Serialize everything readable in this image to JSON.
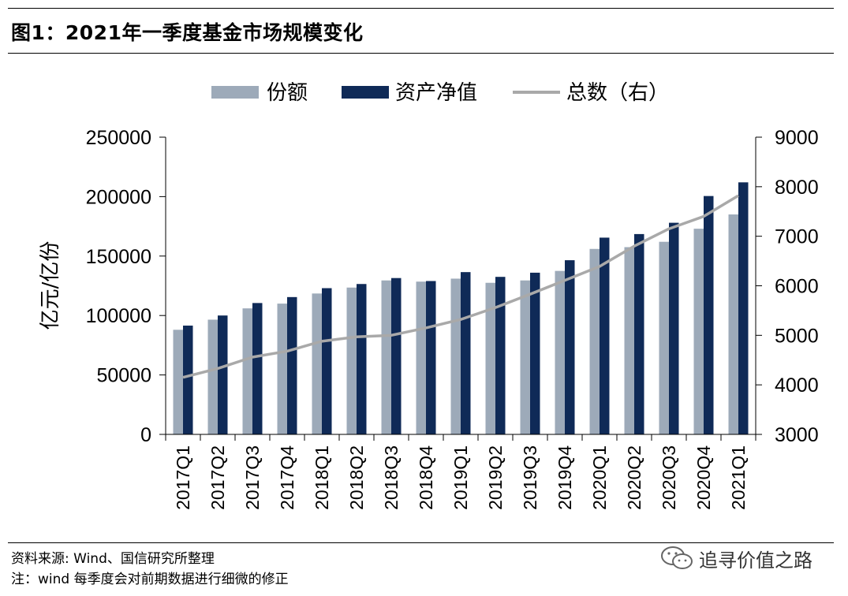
{
  "title": "图1：2021年一季度基金市场规模变化",
  "source_note": "资料来源: Wind、国信研究所整理",
  "footnote": "注：wind 每季度会对前期数据进行细微的修正",
  "brand": "追寻价值之路",
  "colors": {
    "shares": "#9daab9",
    "nav": "#0f2a57",
    "count": "#a9a9a9"
  },
  "chart_data": {
    "type": "bar",
    "categories": [
      "2017Q1",
      "2017Q2",
      "2017Q3",
      "2017Q4",
      "2018Q1",
      "2018Q2",
      "2018Q3",
      "2018Q4",
      "2019Q1",
      "2019Q2",
      "2019Q3",
      "2019Q4",
      "2020Q1",
      "2020Q2",
      "2020Q3",
      "2020Q4",
      "2021Q1"
    ],
    "series": [
      {
        "name": "份额",
        "kind": "bar",
        "axis": "left",
        "values": [
          88000,
          96500,
          106000,
          110000,
          118500,
          123500,
          129500,
          128500,
          131000,
          127500,
          129500,
          137500,
          156000,
          157500,
          162000,
          173000,
          185000
        ]
      },
      {
        "name": "资产净值",
        "kind": "bar",
        "axis": "left",
        "values": [
          91500,
          100000,
          110500,
          115500,
          123000,
          126500,
          131500,
          129000,
          136500,
          132500,
          136000,
          146500,
          165500,
          168500,
          178000,
          200500,
          212000
        ]
      },
      {
        "name": "总数（右）",
        "kind": "line",
        "axis": "right",
        "values": [
          4150,
          4330,
          4560,
          4680,
          4880,
          4970,
          5000,
          5150,
          5320,
          5560,
          5830,
          6110,
          6390,
          6800,
          7150,
          7400,
          7820
        ]
      }
    ],
    "ylabel": "亿元/亿份",
    "ylim": [
      0,
      250000
    ],
    "yticks": [
      "0",
      "50000",
      "100000",
      "150000",
      "200000",
      "250000"
    ],
    "y2lim": [
      3000,
      9000
    ],
    "y2ticks": [
      "3000",
      "4000",
      "5000",
      "6000",
      "7000",
      "8000",
      "9000"
    ],
    "legend_position": "top",
    "grid": false
  }
}
